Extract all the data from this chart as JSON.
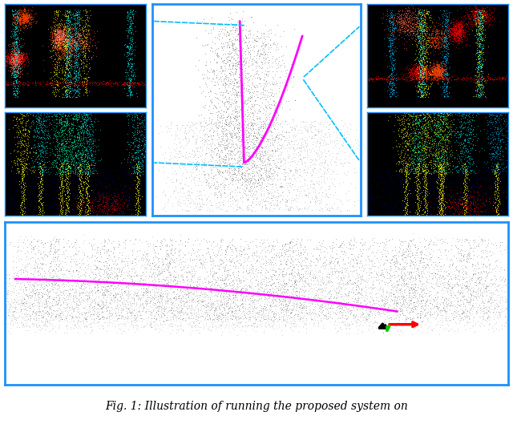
{
  "title_text": "Fig. 1: Illustration of running the proposed system on",
  "title_fontsize": 11,
  "border_color": "#1e90ff",
  "border_linewidth": 2,
  "background_white": "#ffffff",
  "background_black": "#000000",
  "magenta_color": "#ff00ff",
  "cyan_dashed_color": "#00bfff",
  "red_axis_color": "#ff0000",
  "green_axis_color": "#00cc00",
  "black_axis_color": "#000000"
}
